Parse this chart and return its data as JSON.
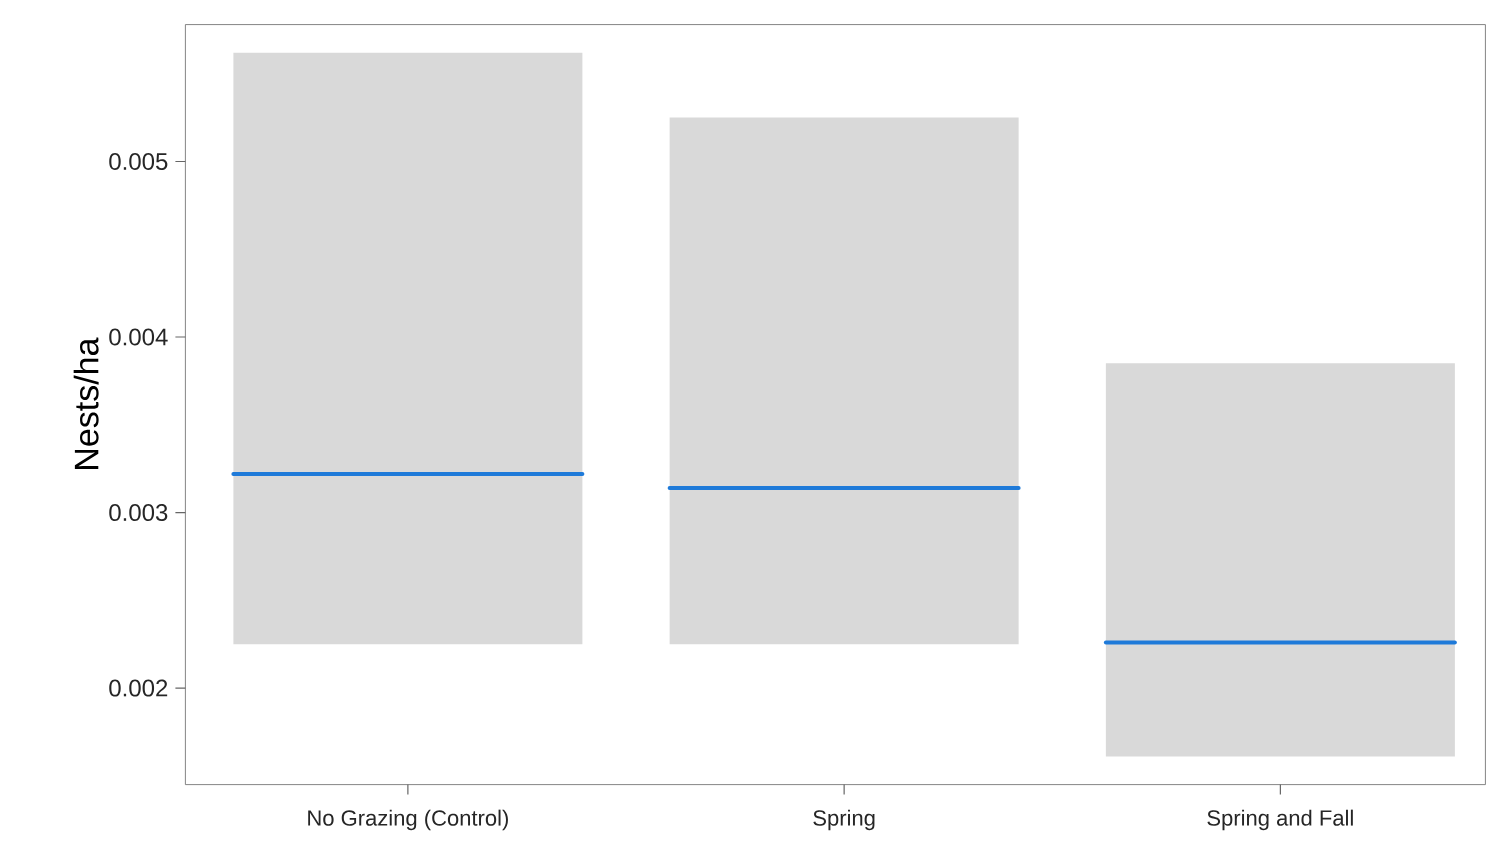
{
  "chart_data": {
    "type": "box",
    "ylabel": "Nests/ha",
    "categories": [
      "No Grazing (Control)",
      "Spring",
      "Spring and Fall"
    ],
    "series": [
      {
        "color": "#d9d9d9",
        "boxes": [
          {
            "low": 0.00225,
            "q1": 0.00225,
            "median": 0.00322,
            "q3": 0.00562,
            "high": 0.00562
          },
          {
            "low": 0.00225,
            "q1": 0.00225,
            "median": 0.00314,
            "q3": 0.00525,
            "high": 0.00525
          },
          {
            "low": 0.00161,
            "q1": 0.00161,
            "median": 0.00226,
            "q3": 0.00385,
            "high": 0.00385
          }
        ]
      }
    ],
    "ylim": [
      0.00145,
      0.00578
    ],
    "yticks": [
      0.002,
      0.003,
      0.004,
      0.005
    ]
  }
}
